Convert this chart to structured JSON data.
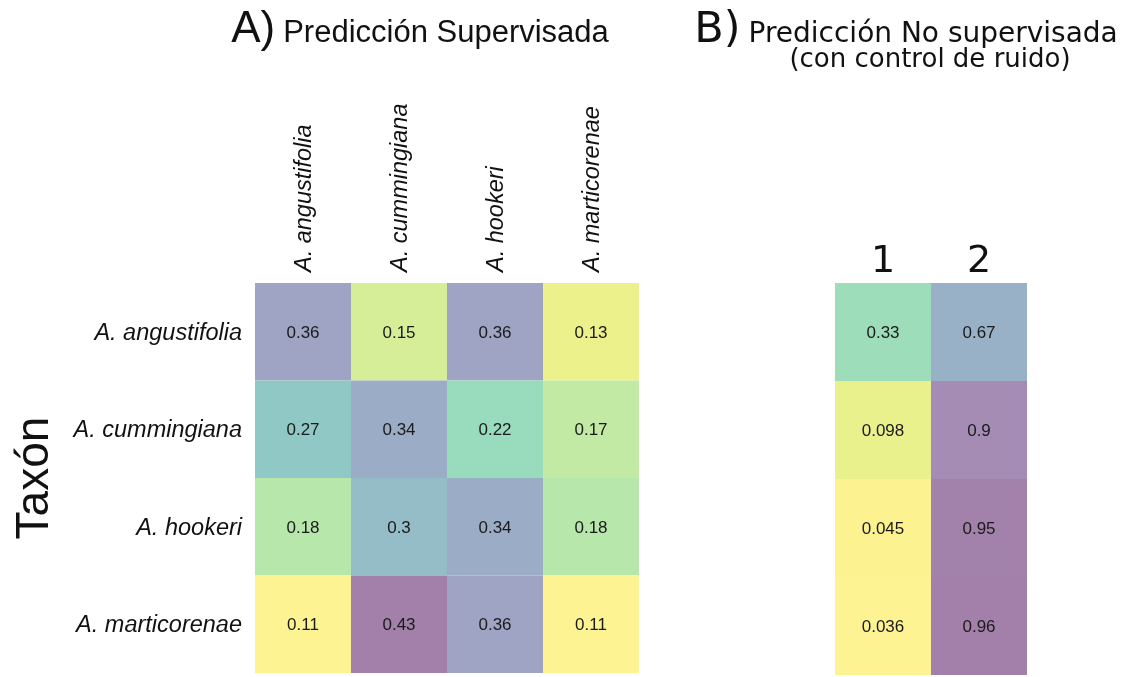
{
  "chart_data": [
    {
      "type": "heatmap",
      "title": "A) Predicción Supervisada",
      "ylabel": "Taxón",
      "categories": [
        "A. angustifolia",
        "A. cummingiana",
        "A. hookeri",
        "A. marticorenae"
      ],
      "y_categories": [
        "A. angustifolia",
        "A. cummingiana",
        "A. hookeri",
        "A. marticorenae"
      ],
      "cells": [
        [
          0.36,
          0.15,
          0.36,
          0.13
        ],
        [
          0.27,
          0.34,
          0.22,
          0.17
        ],
        [
          0.18,
          0.3,
          0.34,
          0.18
        ],
        [
          0.11,
          0.43,
          0.36,
          0.11
        ]
      ],
      "data_labels": true
    },
    {
      "type": "heatmap",
      "title": "B) Predicción No supervisada",
      "subtitle": "(con control de ruido)",
      "categories": [
        "1",
        "2"
      ],
      "y_categories": [
        null,
        null,
        null,
        null
      ],
      "cells": [
        [
          0.33,
          0.67
        ],
        [
          0.098,
          0.9
        ],
        [
          0.045,
          0.95
        ],
        [
          0.036,
          0.96
        ]
      ],
      "data_labels": true,
      "tick_labels": "x"
    }
  ]
}
